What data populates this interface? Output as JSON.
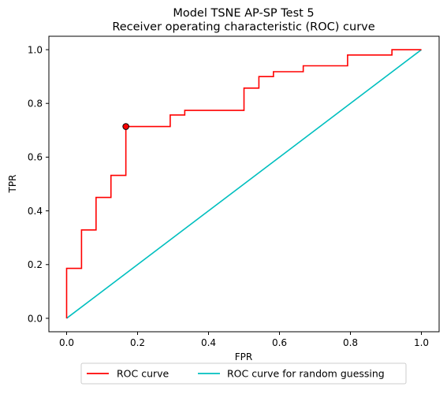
{
  "chart_data": {
    "type": "line",
    "title": "Model TSNE AP-SP Test 5",
    "subtitle": "Receiver operating characteristic (ROC) curve",
    "xlabel": "FPR",
    "ylabel": "TPR",
    "xlim": [
      -0.05,
      1.05
    ],
    "ylim": [
      -0.05,
      1.05
    ],
    "xticks": [
      0.0,
      0.2,
      0.4,
      0.6,
      0.8,
      1.0
    ],
    "yticks": [
      0.0,
      0.2,
      0.4,
      0.6,
      0.8,
      1.0
    ],
    "xtick_labels": [
      "0.0",
      "0.2",
      "0.4",
      "0.6",
      "0.8",
      "1.0"
    ],
    "ytick_labels": [
      "0.0",
      "0.2",
      "0.4",
      "0.6",
      "0.8",
      "1.0"
    ],
    "grid": false,
    "legend_position": "bottom-center, below axes",
    "series": [
      {
        "name": "ROC curve",
        "color": "#ff0000",
        "style": "step",
        "x": [
          0.0,
          0.0,
          0.042,
          0.042,
          0.083,
          0.083,
          0.125,
          0.125,
          0.167,
          0.167,
          0.292,
          0.292,
          0.333,
          0.333,
          0.5,
          0.5,
          0.542,
          0.542,
          0.583,
          0.583,
          0.667,
          0.667,
          0.792,
          0.792,
          0.917,
          0.917,
          1.0
        ],
        "y": [
          0.0,
          0.186,
          0.186,
          0.329,
          0.329,
          0.45,
          0.45,
          0.532,
          0.532,
          0.714,
          0.714,
          0.757,
          0.757,
          0.774,
          0.774,
          0.857,
          0.857,
          0.9,
          0.9,
          0.918,
          0.918,
          0.94,
          0.94,
          0.98,
          0.98,
          1.0,
          1.0
        ]
      },
      {
        "name": "ROC curve for random guessing",
        "color": "#00bfbf",
        "style": "line",
        "x": [
          0.0,
          1.0
        ],
        "y": [
          0.0,
          1.0
        ]
      }
    ],
    "markers": [
      {
        "x": 0.167,
        "y": 0.714,
        "fill": "#ff0000",
        "edge": "#000000"
      }
    ]
  }
}
